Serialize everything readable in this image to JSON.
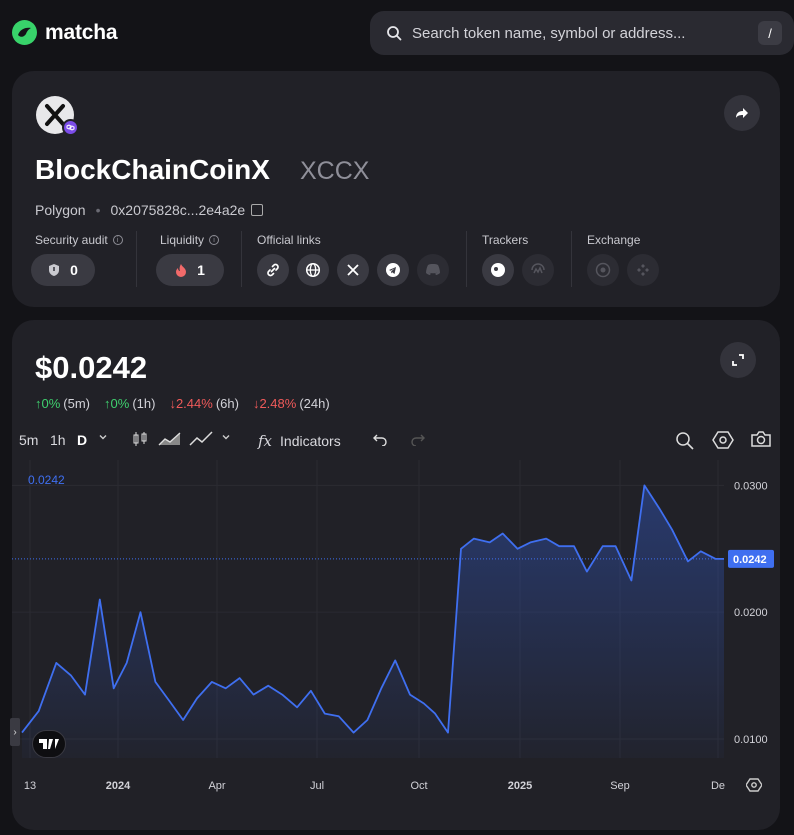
{
  "app": {
    "name": "matcha"
  },
  "search": {
    "placeholder": "Search token name, symbol or address...",
    "shortcut": "/"
  },
  "token": {
    "name": "BlockChainCoinX",
    "symbol": "XCCX",
    "chain": "Polygon",
    "address": "0x2075828c...2e4a2e"
  },
  "stats": {
    "security_label": "Security audit",
    "security_value": "0",
    "liquidity_label": "Liquidity",
    "liquidity_value": "1",
    "links_label": "Official links",
    "trackers_label": "Trackers",
    "exchange_label": "Exchange"
  },
  "icons": {
    "links": [
      "link-icon",
      "globe-icon",
      "x-icon",
      "telegram-icon",
      "discord-icon"
    ],
    "trackers": [
      "coingecko-icon",
      "coinmarketcap-icon"
    ],
    "exchange": [
      "exchange-icon",
      "binance-icon"
    ]
  },
  "price": {
    "value": "$0.0242",
    "changes": [
      {
        "arrow": "↑",
        "pct": "0%",
        "period": "(5m)",
        "dir": "up"
      },
      {
        "arrow": "↑",
        "pct": "0%",
        "period": "(1h)",
        "dir": "up"
      },
      {
        "arrow": "↓",
        "pct": "2.44%",
        "period": "(6h)",
        "dir": "down"
      },
      {
        "arrow": "↓",
        "pct": "2.48%",
        "period": "(24h)",
        "dir": "down"
      }
    ]
  },
  "toolbar": {
    "intervals": [
      "5m",
      "1h",
      "D"
    ],
    "indicators_label": "Indicators",
    "fx_label": "fx"
  },
  "colors": {
    "accent": "#3f6ff0",
    "up": "#3fcf6e",
    "down": "#ef5a5a",
    "brand": "#38d36a"
  },
  "chart_data": {
    "type": "area",
    "x_labels": [
      "13",
      "2024",
      "Apr",
      "Jul",
      "Oct",
      "2025",
      "Sep",
      "De"
    ],
    "y_ticks": [
      "0.0300",
      "0.0200",
      "0.0100"
    ],
    "last_value_label": "0.0242",
    "ohlc_label": "0.0242",
    "x": [
      "2023-11-13",
      "2023-12-01",
      "2023-12-20",
      "2024-01-05",
      "2024-01-20",
      "2024-02-05",
      "2024-02-20",
      "2024-03-05",
      "2024-03-20",
      "2024-04-05",
      "2024-04-20",
      "2024-05-05",
      "2024-05-20",
      "2024-06-05",
      "2024-06-20",
      "2024-07-05",
      "2024-07-20",
      "2024-08-05",
      "2024-08-20",
      "2024-09-05",
      "2024-09-20",
      "2024-10-05",
      "2024-10-20",
      "2024-11-05",
      "2024-11-20",
      "2024-12-05",
      "2024-12-20",
      "2025-01-05",
      "2025-01-20",
      "2025-02-01",
      "2025-02-15",
      "2025-03-01",
      "2025-03-15",
      "2025-04-01",
      "2025-04-15",
      "2025-05-01",
      "2025-05-15",
      "2025-06-01",
      "2025-06-15",
      "2025-07-01",
      "2025-07-15",
      "2025-08-01",
      "2025-08-15",
      "2025-09-01",
      "2025-09-15",
      "2025-10-01",
      "2025-10-15",
      "2025-11-01",
      "2025-11-15",
      "2025-12-01",
      "2025-12-10"
    ],
    "values": [
      0.0105,
      0.0122,
      0.016,
      0.015,
      0.0135,
      0.021,
      0.014,
      0.016,
      0.02,
      0.0145,
      0.013,
      0.0115,
      0.0132,
      0.0145,
      0.014,
      0.0148,
      0.0135,
      0.0142,
      0.0135,
      0.0125,
      0.0138,
      0.012,
      0.0118,
      0.0105,
      0.0115,
      0.014,
      0.0162,
      0.0135,
      0.0128,
      0.012,
      0.0105,
      0.025,
      0.0258,
      0.0255,
      0.0262,
      0.025,
      0.0255,
      0.0258,
      0.0252,
      0.0252,
      0.0232,
      0.0252,
      0.0252,
      0.0225,
      0.03,
      0.0282,
      0.0265,
      0.024,
      0.0248,
      0.0242,
      0.0242
    ],
    "ylim": [
      0.0085,
      0.032
    ],
    "grid": true
  }
}
